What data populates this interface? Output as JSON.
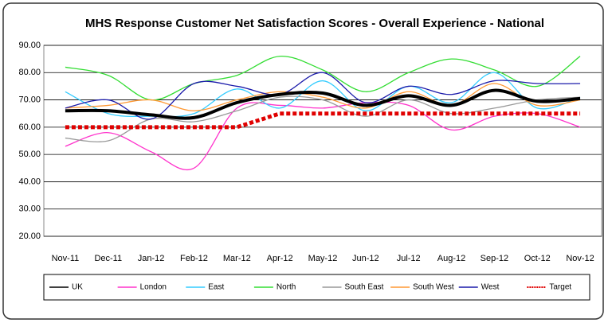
{
  "chart_data": {
    "type": "line",
    "title": "MHS Response Customer Net Satisfaction Scores - Overall Experience - National",
    "categories": [
      "Nov-11",
      "Dec-11",
      "Jan-12",
      "Feb-12",
      "Mar-12",
      "Apr-12",
      "May-12",
      "Jun-12",
      "Jul-12",
      "Aug-12",
      "Sep-12",
      "Oct-12",
      "Nov-12"
    ],
    "series": [
      {
        "name": "UK",
        "color": "#000000",
        "values": [
          66,
          66,
          64.5,
          63.5,
          69,
          72,
          72.5,
          68,
          71.5,
          68,
          73.5,
          69.5,
          70.5
        ]
      },
      {
        "name": "London",
        "color": "#ff33cc",
        "values": [
          53,
          58,
          51,
          45,
          67,
          68,
          67,
          69,
          68,
          59,
          64,
          65,
          60
        ]
      },
      {
        "name": "East",
        "color": "#33ccff",
        "values": [
          73,
          65,
          64,
          65,
          74,
          67,
          77,
          66,
          75,
          69,
          80,
          67,
          71
        ]
      },
      {
        "name": "North",
        "color": "#33dd33",
        "values": [
          82,
          79,
          70,
          76,
          79,
          86,
          81,
          73,
          80,
          85,
          81,
          75,
          86
        ]
      },
      {
        "name": "South East",
        "color": "#999999",
        "values": [
          56,
          55,
          63,
          62,
          66,
          71,
          70,
          64,
          70,
          65,
          67,
          70,
          71
        ]
      },
      {
        "name": "South West",
        "color": "#ff9933",
        "values": [
          67,
          68,
          70,
          66,
          70,
          73,
          71,
          67,
          73,
          68,
          76,
          68,
          70
        ]
      },
      {
        "name": "West",
        "color": "#1a1aaa",
        "values": [
          67,
          70,
          63,
          76,
          75,
          72,
          80,
          69,
          75,
          72,
          77,
          76,
          76
        ]
      },
      {
        "name": "Target",
        "color": "#e00000",
        "values": [
          60,
          60,
          60,
          60,
          60,
          65,
          65,
          65,
          65,
          65,
          65,
          65,
          65
        ]
      }
    ],
    "ylim": [
      20,
      90
    ],
    "yticks": [
      {
        "value": 20,
        "label": "20.00"
      },
      {
        "value": 30,
        "label": "30.00"
      },
      {
        "value": 40,
        "label": "40.00"
      },
      {
        "value": 50,
        "label": "50.00"
      },
      {
        "value": 60,
        "label": "60.00"
      },
      {
        "value": 70,
        "label": "70.00"
      },
      {
        "value": 80,
        "label": "80.00"
      },
      {
        "value": 90,
        "label": "90.00"
      }
    ],
    "grid": true
  }
}
